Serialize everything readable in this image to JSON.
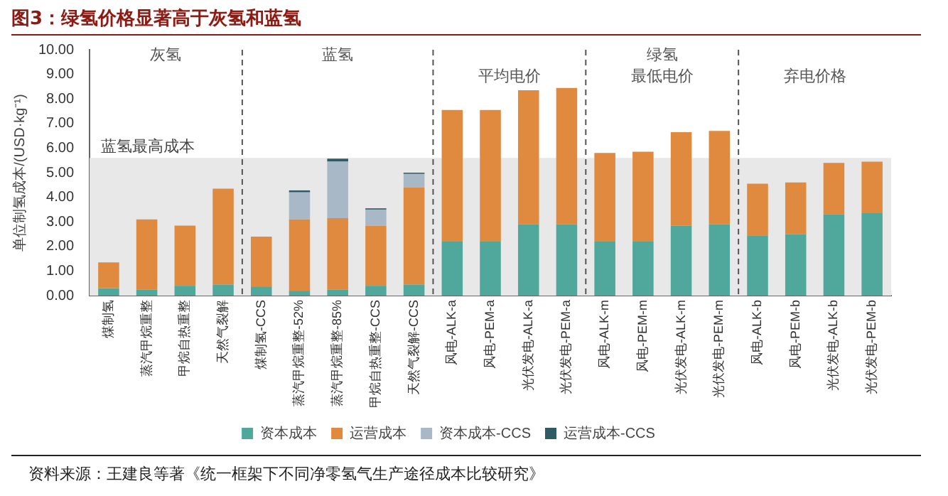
{
  "chart_data": {
    "type": "bar",
    "title": "图3：绿氢价格显著高于灰氢和蓝氢",
    "ylabel": "单位制氢成本/(USD·kg⁻¹)",
    "categories": [
      "煤制氢",
      "蒸汽甲烷重整",
      "甲烷自热重整",
      "天然气裂解",
      "煤制氢-CCS",
      "蒸汽甲烷重整-52%",
      "蒸汽甲烷重整-85%",
      "甲烷自热重整-CCS",
      "天然气裂解-CCS",
      "风电-ALK-a",
      "风电-PEM-a",
      "光伏发电-ALK-a",
      "光伏发电-PEM-a",
      "风电-ALK-m",
      "风电-PEM-m",
      "光伏发电-ALK-m",
      "光伏发电-PEM-m",
      "风电-ALK-b",
      "风电-PEM-b",
      "光伏发电-ALK-b",
      "光伏发电-PEM-b"
    ],
    "stacked": true,
    "series": [
      {
        "name": "资本成本",
        "color": "#4fa89b",
        "values": [
          0.3,
          0.25,
          0.4,
          0.45,
          0.35,
          0.2,
          0.25,
          0.4,
          0.45,
          2.2,
          2.2,
          2.9,
          2.9,
          2.2,
          2.2,
          2.85,
          2.9,
          2.45,
          2.5,
          3.3,
          3.35
        ]
      },
      {
        "name": "运营成本",
        "color": "#df8a3e",
        "values": [
          1.05,
          2.85,
          2.45,
          3.9,
          2.05,
          2.9,
          2.9,
          2.45,
          3.95,
          5.35,
          5.35,
          5.45,
          5.55,
          3.6,
          3.65,
          3.8,
          3.8,
          2.1,
          2.1,
          2.1,
          2.1
        ]
      },
      {
        "name": "资本成本-CCS",
        "color": "#a9b8c6",
        "values": [
          null,
          null,
          null,
          null,
          null,
          1.1,
          2.3,
          0.65,
          0.55,
          null,
          null,
          null,
          null,
          null,
          null,
          null,
          null,
          null,
          null,
          null,
          null
        ]
      },
      {
        "name": "运营成本-CCS",
        "color": "#2e5c66",
        "values": [
          null,
          null,
          null,
          null,
          null,
          0.08,
          0.12,
          0.05,
          0.05,
          null,
          null,
          null,
          null,
          null,
          null,
          null,
          null,
          null,
          null,
          null,
          null
        ]
      }
    ],
    "ylim": [
      0,
      10
    ],
    "yticks": [
      {
        "value": 0,
        "label": "0.00"
      },
      {
        "value": 1,
        "label": "1.00"
      },
      {
        "value": 2,
        "label": "2.00"
      },
      {
        "value": 3,
        "label": "3.00"
      },
      {
        "value": 4,
        "label": "4.00"
      },
      {
        "value": 5,
        "label": "5.00"
      },
      {
        "value": 6,
        "label": "6.00"
      },
      {
        "value": 7,
        "label": "7.00"
      },
      {
        "value": 8,
        "label": "8.00"
      },
      {
        "value": 9,
        "label": "9.00"
      },
      {
        "value": 10,
        "label": "10.00"
      }
    ],
    "bands": [
      {
        "axis": "y",
        "from": 0,
        "to": 5.6,
        "label": "蓝氢最高成本",
        "color": "#e8e8e8"
      }
    ],
    "annotations": [
      "灰氢",
      "蓝氢",
      "绿氢",
      "平均电价",
      "最低电价",
      "弃电价格",
      "资料来源：王建良等著《统一框架下不同净零氢气生产途径成本比较研究》"
    ],
    "grid": false,
    "legend": "bottom"
  }
}
